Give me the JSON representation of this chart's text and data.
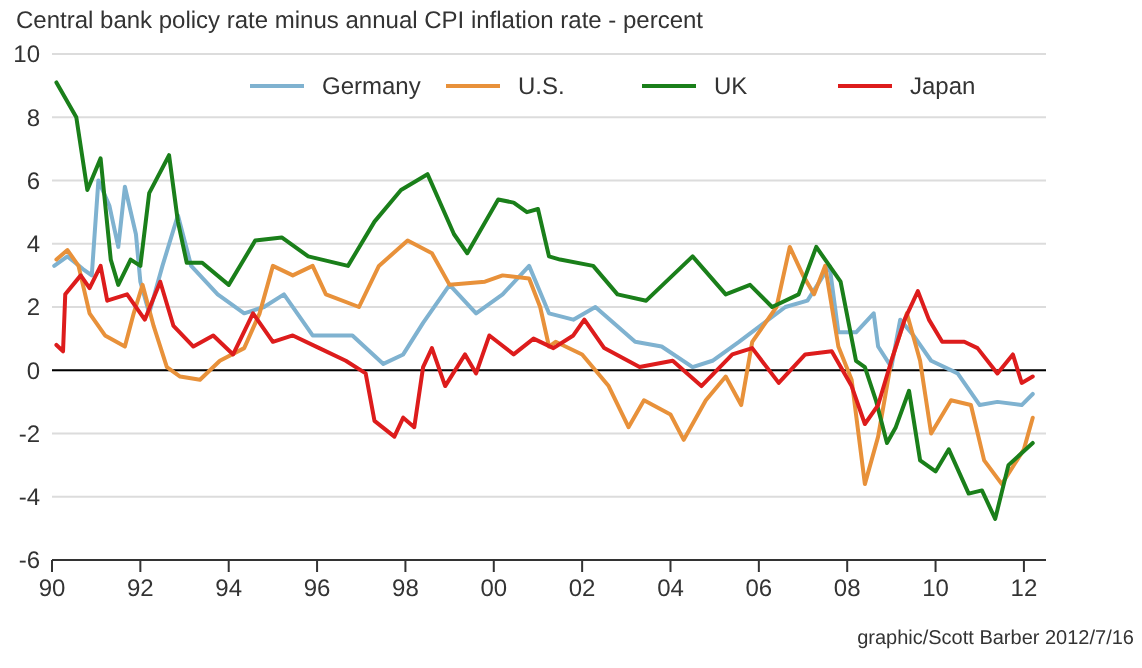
{
  "chart_data": {
    "type": "line",
    "title": "Central bank policy rate minus annual CPI inflation rate - percent",
    "annotations": [
      "graphic/Scott Barber 2012/7/16"
    ],
    "xlim": [
      1990,
      2012.5
    ],
    "xticks": [
      {
        "value": 1990,
        "label": "90"
      },
      {
        "value": 1992,
        "label": "92"
      },
      {
        "value": 1994,
        "label": "94"
      },
      {
        "value": 1996,
        "label": "96"
      },
      {
        "value": 1998,
        "label": "98"
      },
      {
        "value": 2000,
        "label": "00"
      },
      {
        "value": 2002,
        "label": "02"
      },
      {
        "value": 2004,
        "label": "04"
      },
      {
        "value": 2006,
        "label": "06"
      },
      {
        "value": 2008,
        "label": "08"
      },
      {
        "value": 2010,
        "label": "10"
      },
      {
        "value": 2012,
        "label": "12"
      }
    ],
    "ylim": [
      -6,
      10
    ],
    "yticks": [
      -6,
      -4,
      -2,
      0,
      2,
      4,
      6,
      8,
      10
    ],
    "ref_lines": [
      {
        "axis": "y",
        "value": 0,
        "color": "#000000"
      }
    ],
    "grid": "y",
    "legend": "top",
    "line_style": "solid",
    "marker": "none",
    "series": [
      {
        "name": "Germany",
        "color": "#7fb2d0",
        "x": [
          1990.05,
          1990.35,
          1990.7,
          1990.9,
          1991.05,
          1991.3,
          1991.5,
          1991.65,
          1991.9,
          1992.0,
          1992.2,
          1992.5,
          1992.85,
          1993.15,
          1993.75,
          1994.35,
          1994.8,
          1995.25,
          1995.9,
          1996.8,
          1997.5,
          1997.95,
          1998.4,
          1999.0,
          1999.6,
          2000.2,
          2000.8,
          2001.25,
          2001.8,
          2002.3,
          2003.2,
          2003.8,
          2004.5,
          2004.95,
          2005.55,
          2006.6,
          2007.1,
          2007.6,
          2007.8,
          2008.2,
          2008.6,
          2008.7,
          2009.0,
          2009.2,
          2009.5,
          2009.9,
          2010.5,
          2011.0,
          2011.4,
          2011.95,
          2012.2
        ],
        "values": [
          3.3,
          3.6,
          3.2,
          3.0,
          6.0,
          5.2,
          3.9,
          5.8,
          4.3,
          2.8,
          1.8,
          3.3,
          4.9,
          3.3,
          2.4,
          1.8,
          2.0,
          2.4,
          1.1,
          1.1,
          0.2,
          0.5,
          1.5,
          2.7,
          1.8,
          2.4,
          3.3,
          1.8,
          1.6,
          2.0,
          0.9,
          0.75,
          0.1,
          0.3,
          0.9,
          2.0,
          2.2,
          3.3,
          1.2,
          1.2,
          1.8,
          0.75,
          0.1,
          1.6,
          1.1,
          0.3,
          -0.1,
          -1.1,
          -1.0,
          -1.1,
          -0.75
        ]
      },
      {
        "name": "U.S.",
        "color": "#e8913a",
        "x": [
          1990.1,
          1990.35,
          1990.6,
          1990.85,
          1991.2,
          1991.65,
          1991.85,
          1992.05,
          1992.3,
          1992.6,
          1992.9,
          1993.35,
          1993.8,
          1994.35,
          1994.7,
          1995.0,
          1995.45,
          1995.9,
          1996.2,
          1996.95,
          1997.4,
          1998.05,
          1998.6,
          1999.0,
          1999.8,
          2000.2,
          2000.8,
          2001.05,
          2001.25,
          2001.4,
          2002.0,
          2002.6,
          2003.05,
          2003.4,
          2004.0,
          2004.3,
          2004.8,
          2005.25,
          2005.6,
          2005.85,
          2006.4,
          2006.7,
          2007.0,
          2007.25,
          2007.5,
          2007.8,
          2008.1,
          2008.4,
          2008.7,
          2009.0,
          2009.35,
          2009.65,
          2009.9,
          2010.35,
          2010.8,
          2011.1,
          2011.5,
          2012.0,
          2012.2
        ],
        "values": [
          3.5,
          3.8,
          3.3,
          1.8,
          1.1,
          0.75,
          1.8,
          2.7,
          1.4,
          0.1,
          -0.2,
          -0.3,
          0.3,
          0.7,
          1.8,
          3.3,
          3.0,
          3.3,
          2.4,
          2.0,
          3.3,
          4.1,
          3.7,
          2.7,
          2.8,
          3.0,
          2.9,
          2.0,
          0.75,
          0.9,
          0.5,
          -0.5,
          -1.8,
          -0.95,
          -1.4,
          -2.2,
          -0.95,
          -0.2,
          -1.1,
          0.9,
          2.0,
          3.9,
          3.0,
          2.4,
          3.3,
          0.75,
          -0.3,
          -3.6,
          -2.1,
          0.3,
          1.8,
          0.3,
          -2.0,
          -0.95,
          -1.1,
          -2.85,
          -3.6,
          -2.5,
          -1.5
        ]
      },
      {
        "name": "UK",
        "color": "#1a7f1a",
        "x": [
          1990.1,
          1990.55,
          1990.8,
          1991.1,
          1991.33,
          1991.5,
          1991.78,
          1992.0,
          1992.2,
          1992.65,
          1992.85,
          1993.05,
          1993.4,
          1994.0,
          1994.6,
          1995.2,
          1995.8,
          1996.7,
          1997.3,
          1997.9,
          1998.5,
          1999.1,
          1999.4,
          2000.1,
          2000.45,
          2000.75,
          2001.0,
          2001.25,
          2001.5,
          2002.25,
          2002.8,
          2003.45,
          2004.5,
          2005.25,
          2005.8,
          2006.3,
          2006.9,
          2007.3,
          2007.85,
          2008.2,
          2008.4,
          2008.65,
          2008.9,
          2009.1,
          2009.4,
          2009.65,
          2010.0,
          2010.3,
          2010.75,
          2011.05,
          2011.35,
          2011.65,
          2012.2
        ],
        "values": [
          9.1,
          8.0,
          5.7,
          6.7,
          3.5,
          2.7,
          3.5,
          3.3,
          5.6,
          6.8,
          4.7,
          3.4,
          3.4,
          2.7,
          4.1,
          4.2,
          3.6,
          3.3,
          4.7,
          5.7,
          6.2,
          4.3,
          3.7,
          5.4,
          5.3,
          5.0,
          5.1,
          3.6,
          3.5,
          3.3,
          2.4,
          2.2,
          3.6,
          2.4,
          2.7,
          2.0,
          2.4,
          3.9,
          2.8,
          0.3,
          0.1,
          -0.95,
          -2.3,
          -1.8,
          -0.65,
          -2.85,
          -3.2,
          -2.5,
          -3.9,
          -3.8,
          -4.7,
          -3.0,
          -2.3
        ]
      },
      {
        "name": "Japan",
        "color": "#dd1c1c",
        "x": [
          1990.1,
          1990.25,
          1990.3,
          1990.65,
          1990.85,
          1991.1,
          1991.25,
          1991.7,
          1992.1,
          1992.45,
          1992.75,
          1993.2,
          1993.65,
          1994.1,
          1994.55,
          1995.0,
          1995.45,
          1996.05,
          1996.65,
          1997.1,
          1997.3,
          1997.75,
          1997.95,
          1998.2,
          1998.4,
          1998.6,
          1998.9,
          1999.35,
          1999.6,
          1999.9,
          2000.45,
          2000.9,
          2001.35,
          2001.8,
          2002.05,
          2002.5,
          2003.3,
          2004.05,
          2004.7,
          2005.4,
          2005.85,
          2006.45,
          2007.05,
          2007.65,
          2008.1,
          2008.4,
          2008.7,
          2009.0,
          2009.3,
          2009.6,
          2009.85,
          2010.15,
          2010.65,
          2010.95,
          2011.4,
          2011.75,
          2011.95,
          2012.2
        ],
        "values": [
          0.8,
          0.6,
          2.4,
          3.0,
          2.6,
          3.3,
          2.2,
          2.4,
          1.6,
          2.8,
          1.4,
          0.75,
          1.1,
          0.5,
          1.8,
          0.9,
          1.1,
          0.7,
          0.3,
          -0.1,
          -1.6,
          -2.1,
          -1.5,
          -1.8,
          0.1,
          0.7,
          -0.5,
          0.5,
          -0.1,
          1.1,
          0.5,
          1.0,
          0.7,
          1.1,
          1.6,
          0.7,
          0.1,
          0.3,
          -0.5,
          0.5,
          0.7,
          -0.4,
          0.5,
          0.6,
          -0.5,
          -1.7,
          -1.1,
          0.3,
          1.6,
          2.5,
          1.6,
          0.9,
          0.9,
          0.7,
          -0.1,
          0.5,
          -0.4,
          -0.2
        ]
      }
    ]
  }
}
